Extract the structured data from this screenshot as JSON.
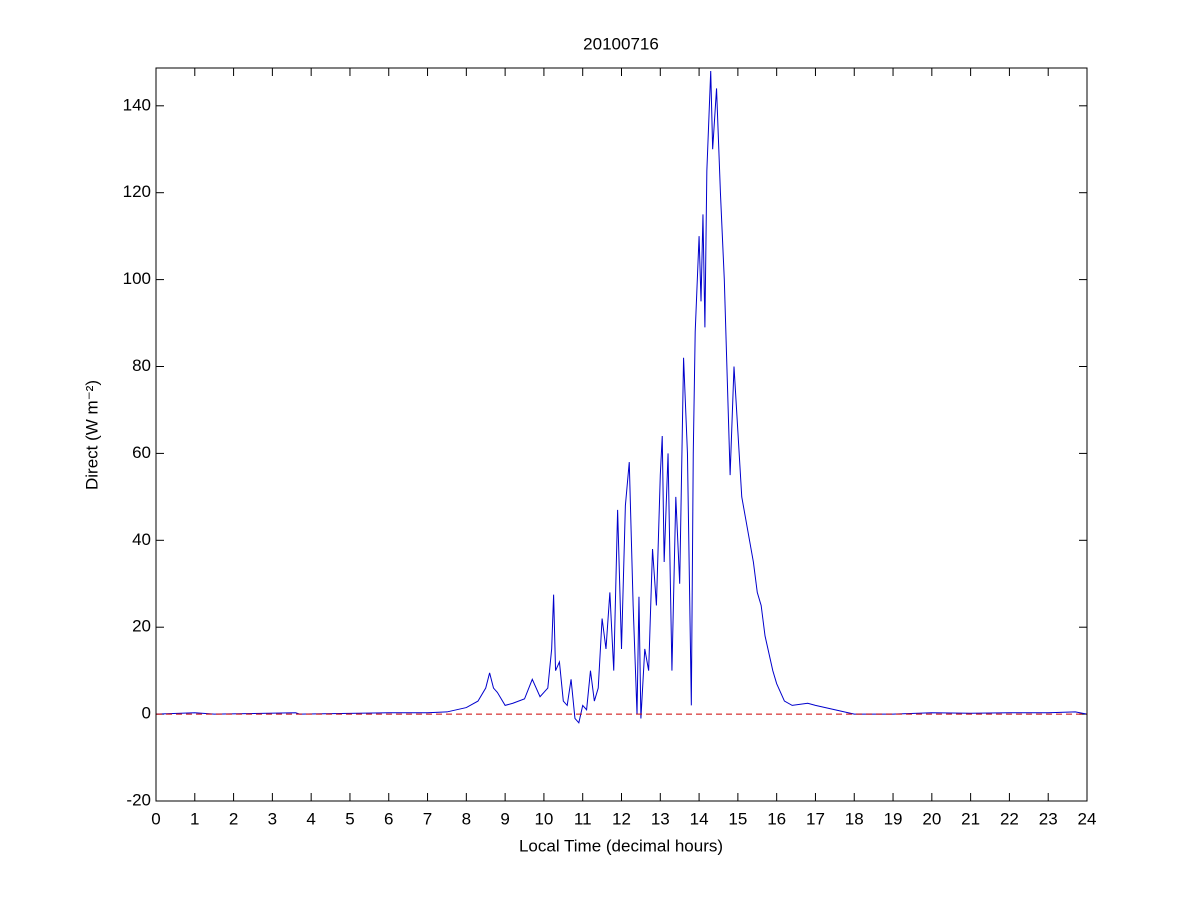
{
  "chart_data": {
    "type": "line",
    "title": "20100716",
    "xlabel": "Local Time (decimal hours)",
    "ylabel": "Direct (W m⁻²)",
    "xlim": [
      0,
      24
    ],
    "ylim": [
      -20,
      148.7
    ],
    "xticks": [
      0,
      1,
      2,
      3,
      4,
      5,
      6,
      7,
      8,
      9,
      10,
      11,
      12,
      13,
      14,
      15,
      16,
      17,
      18,
      19,
      20,
      21,
      22,
      23,
      24
    ],
    "yticks": [
      -20,
      0,
      20,
      40,
      60,
      80,
      100,
      120,
      140
    ],
    "reference_line": {
      "value": 0,
      "color": "#cc0000",
      "style": "dashed"
    },
    "series": [
      {
        "color": "#0000cc",
        "x": [
          0,
          1,
          1.5,
          3.6,
          3.7,
          6,
          7,
          7.5,
          8,
          8.3,
          8.5,
          8.6,
          8.7,
          8.8,
          9,
          9.2,
          9.5,
          9.7,
          9.9,
          10.1,
          10.2,
          10.25,
          10.3,
          10.4,
          10.5,
          10.6,
          10.7,
          10.8,
          10.9,
          11,
          11.1,
          11.2,
          11.3,
          11.4,
          11.5,
          11.6,
          11.7,
          11.8,
          11.9,
          12,
          12.1,
          12.2,
          12.3,
          12.4,
          12.45,
          12.5,
          12.6,
          12.7,
          12.8,
          12.9,
          13,
          13.05,
          13.1,
          13.2,
          13.3,
          13.4,
          13.5,
          13.6,
          13.7,
          13.8,
          13.85,
          13.9,
          14,
          14.05,
          14.1,
          14.15,
          14.2,
          14.3,
          14.35,
          14.45,
          14.55,
          14.65,
          14.75,
          14.8,
          14.9,
          15,
          15.1,
          15.2,
          15.3,
          15.4,
          15.5,
          15.6,
          15.7,
          15.8,
          15.9,
          16,
          16.2,
          16.4,
          16.8,
          17,
          17.5,
          18,
          19,
          20,
          21,
          22,
          23,
          23.7,
          24
        ],
        "values": [
          0,
          0.3,
          0,
          0.3,
          0,
          0.3,
          0.3,
          0.5,
          1.5,
          3,
          6,
          9.5,
          6,
          5,
          2,
          2.5,
          3.5,
          8,
          4,
          6,
          15,
          27.5,
          10,
          12,
          3,
          2,
          8,
          -1,
          -2,
          2,
          1,
          10,
          3,
          6,
          22,
          15,
          28,
          10,
          47,
          15,
          48,
          58,
          25,
          0,
          27,
          -1,
          15,
          10,
          38,
          25,
          55,
          64,
          35,
          60,
          10,
          50,
          30,
          82,
          60,
          2,
          60,
          88,
          110,
          95,
          115,
          89,
          125,
          148,
          130,
          144,
          120,
          100,
          70,
          55,
          80,
          65,
          50,
          45,
          40,
          35,
          28,
          25,
          18,
          14,
          10,
          7,
          3,
          2,
          2.5,
          2,
          1,
          0,
          0,
          0.3,
          0.2,
          0.3,
          0.3,
          0.5,
          0
        ]
      }
    ]
  }
}
